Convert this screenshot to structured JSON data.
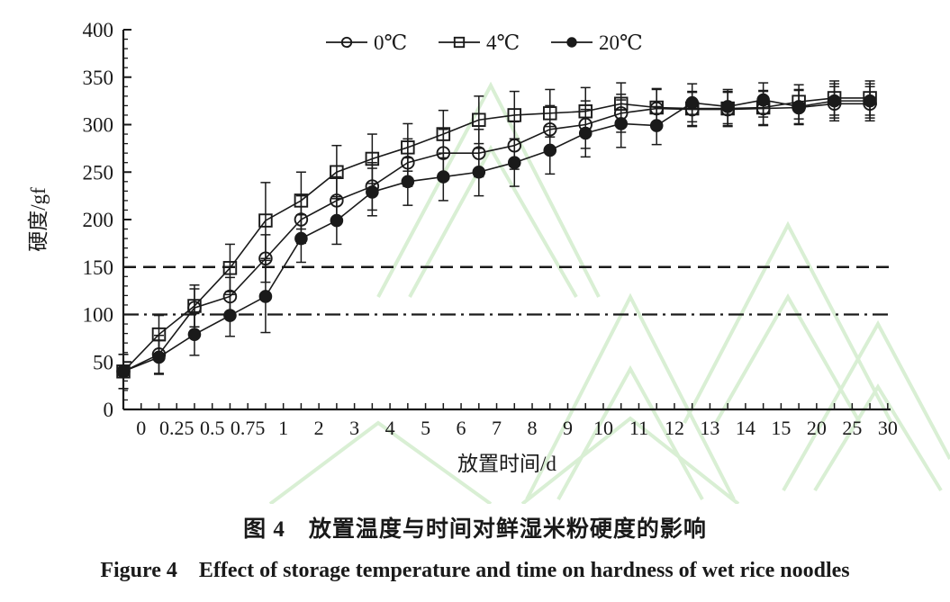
{
  "figure": {
    "caption_zh": "图 4　放置温度与时间对鲜湿米粉硬度的影响",
    "caption_en": "Figure 4　Effect of storage temperature and time on hardness of wet rice noodles"
  },
  "colors": {
    "axis": "#1a1a1a",
    "series": "#1a1a1a",
    "watermark": "#d9efd4"
  },
  "chart_data": {
    "type": "line",
    "title": "",
    "xlabel": "放置时间/d",
    "ylabel": "硬度/gf",
    "ylim": [
      0,
      400
    ],
    "ytick_step": 50,
    "ytick_minor_step": 10,
    "grid": false,
    "legend_position": "top-center",
    "categories": [
      "0",
      "0.25",
      "0.5",
      "0.75",
      "1",
      "2",
      "3",
      "4",
      "5",
      "6",
      "7",
      "8",
      "9",
      "10",
      "11",
      "12",
      "13",
      "14",
      "15",
      "20",
      "25",
      "30"
    ],
    "series": [
      {
        "name": "0℃",
        "marker": "open-circle",
        "values": [
          40,
          58,
          107,
          119,
          159,
          200,
          220,
          235,
          260,
          270,
          270,
          278,
          295,
          300,
          312,
          317,
          316,
          316,
          317,
          318,
          322,
          322
        ],
        "errors": [
          18,
          20,
          20,
          20,
          25,
          25,
          25,
          25,
          25,
          25,
          25,
          25,
          25,
          25,
          20,
          20,
          18,
          18,
          18,
          18,
          18,
          18
        ]
      },
      {
        "name": "4℃",
        "marker": "open-square",
        "values": [
          40,
          79,
          109,
          149,
          199,
          220,
          250,
          264,
          276,
          290,
          305,
          310,
          312,
          314,
          322,
          318,
          317,
          317,
          318,
          324,
          328,
          328
        ],
        "errors": [
          18,
          20,
          22,
          25,
          40,
          30,
          28,
          26,
          25,
          25,
          25,
          25,
          25,
          25,
          22,
          20,
          18,
          18,
          18,
          18,
          18,
          18
        ]
      },
      {
        "name": "20℃",
        "marker": "filled-circle",
        "values": [
          40,
          55,
          79,
          99,
          119,
          180,
          199,
          229,
          240,
          245,
          250,
          260,
          273,
          291,
          301,
          299,
          323,
          319,
          326,
          319,
          325,
          325
        ],
        "errors": [
          18,
          18,
          22,
          22,
          38,
          25,
          25,
          25,
          25,
          25,
          25,
          25,
          25,
          25,
          25,
          20,
          20,
          18,
          18,
          18,
          18,
          18
        ]
      }
    ],
    "reference_lines": [
      {
        "value": 150,
        "style": "dashed"
      },
      {
        "value": 100,
        "style": "dash-dot"
      }
    ]
  }
}
